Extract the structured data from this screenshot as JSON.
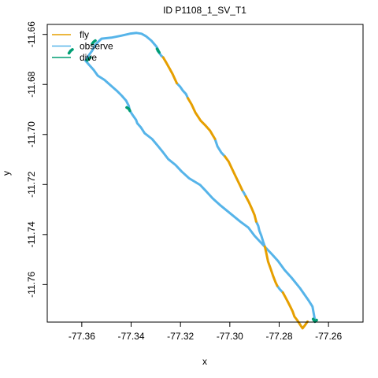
{
  "chart_data": {
    "type": "line",
    "title": "ID P1108_1_SV_T1",
    "xlabel": "x",
    "ylabel": "y",
    "xlim": [
      -77.374,
      -77.246
    ],
    "ylim": [
      -11.775,
      -11.656
    ],
    "x_ticks": [
      -77.36,
      -77.34,
      -77.32,
      -77.3,
      -77.28,
      -77.26
    ],
    "x_tick_labels": [
      "-77.36",
      "-77.34",
      "-77.32",
      "-77.30",
      "-77.28",
      "-77.26"
    ],
    "y_ticks": [
      -11.66,
      -11.68,
      -11.7,
      -11.72,
      -11.74,
      -11.76
    ],
    "y_tick_labels": [
      "-11.66",
      "-11.68",
      "-11.70",
      "-11.72",
      "-11.74",
      "-11.76"
    ],
    "grid": false,
    "legend_position": "top-left",
    "colors": {
      "fly": "#e69f00",
      "observe": "#56b4e9",
      "dive": "#009e73"
    },
    "series": [
      {
        "name": "observe",
        "segments": [
          {
            "x": [
              -77.2655,
              -77.2665,
              -77.2682,
              -77.2715,
              -77.275,
              -77.2778,
              -77.2805,
              -77.283,
              -77.2862,
              -77.29,
              -77.2925,
              -77.2958,
              -77.2995,
              -77.304,
              -77.307,
              -77.3095,
              -77.312,
              -77.3165,
              -77.3195,
              -77.322,
              -77.325,
              -77.327,
              -77.3292,
              -77.3315,
              -77.3345,
              -77.336,
              -77.3375,
              -77.338,
              -77.3392,
              -77.3405,
              -77.341,
              -77.342,
              -77.3438,
              -77.3458,
              -77.3485,
              -77.3508,
              -77.3535,
              -77.3552,
              -77.357,
              -77.3585,
              -77.3575,
              -77.3558,
              -77.3545,
              -77.3532,
              -77.352,
              -77.348,
              -77.344,
              -77.3405,
              -77.3378,
              -77.3358,
              -77.334,
              -77.3318,
              -77.3298,
              -77.329,
              -77.3292
            ],
            "y": [
              -11.7742,
              -11.7688,
              -11.7662,
              -11.7615,
              -11.7572,
              -11.7542,
              -11.7505,
              -11.7478,
              -11.7445,
              -11.7405,
              -11.7372,
              -11.7348,
              -11.7318,
              -11.7282,
              -11.7255,
              -11.7228,
              -11.7202,
              -11.7175,
              -11.7148,
              -11.7122,
              -11.7098,
              -11.7072,
              -11.7045,
              -11.7018,
              -11.6995,
              -11.6972,
              -11.6955,
              -11.6942,
              -11.6925,
              -11.6905,
              -11.6885,
              -11.6865,
              -11.6845,
              -11.6825,
              -11.6802,
              -11.6782,
              -11.6765,
              -11.6742,
              -11.6722,
              -11.6705,
              -11.6688,
              -11.6665,
              -11.6642,
              -11.6628,
              -11.6617,
              -11.6613,
              -11.6605,
              -11.6597,
              -11.6594,
              -11.6597,
              -11.6607,
              -11.6625,
              -11.6648,
              -11.6662,
              -11.6666
            ]
          },
          {
            "x": [
              -77.3292,
              -77.3285,
              -77.3278,
              -77.327
            ],
            "y": [
              -11.6666,
              -11.6675,
              -11.6685,
              -11.6692
            ]
          },
          {
            "x": [
              -77.3215,
              -77.3202,
              -77.319,
              -77.3178,
              -77.317
            ],
            "y": [
              -11.6795,
              -11.6808,
              -11.6825,
              -11.6838,
              -11.6855
            ]
          },
          {
            "x": [
              -77.306,
              -77.305,
              -77.3035,
              -77.302
            ],
            "y": [
              -11.7018,
              -11.7048,
              -11.7072,
              -11.7088
            ]
          },
          {
            "x": [
              -77.295,
              -77.2942,
              -77.2935
            ],
            "y": [
              -11.7222,
              -11.7235,
              -11.7248
            ]
          },
          {
            "x": [
              -77.2893,
              -77.2885,
              -77.288,
              -77.2872,
              -77.2865,
              -77.2858
            ],
            "y": [
              -11.7348,
              -11.7365,
              -11.7385,
              -11.7405,
              -11.7428,
              -11.7448
            ]
          },
          {
            "x": [
              -77.2808,
              -77.2798,
              -77.2785
            ],
            "y": [
              -11.7605,
              -11.7618,
              -11.7632
            ]
          }
        ]
      },
      {
        "name": "fly",
        "segments": [
          {
            "x": [
              -77.327,
              -77.3258,
              -77.3245,
              -77.3232,
              -77.3222,
              -77.3215
            ],
            "y": [
              -11.6692,
              -11.6712,
              -11.6735,
              -11.6758,
              -11.678,
              -11.6795
            ]
          },
          {
            "x": [
              -77.317,
              -77.3155,
              -77.314,
              -77.3118,
              -77.3098,
              -77.308,
              -77.3068,
              -77.306
            ],
            "y": [
              -11.6855,
              -11.688,
              -11.6912,
              -11.6945,
              -11.6965,
              -11.6985,
              -11.7005,
              -11.7018
            ]
          },
          {
            "x": [
              -77.302,
              -77.3005,
              -77.2992,
              -77.298,
              -77.2968,
              -77.2958,
              -77.295
            ],
            "y": [
              -11.7088,
              -11.7108,
              -11.7135,
              -11.716,
              -11.7185,
              -11.7205,
              -11.7222
            ]
          },
          {
            "x": [
              -77.2935,
              -77.2922,
              -77.291,
              -77.29,
              -77.2893
            ],
            "y": [
              -11.7248,
              -11.7272,
              -11.7298,
              -11.7322,
              -11.7348
            ]
          },
          {
            "x": [
              -77.2858,
              -77.2852,
              -77.2845,
              -77.2835,
              -77.2825,
              -77.2815,
              -77.2808
            ],
            "y": [
              -11.7448,
              -11.7475,
              -11.7508,
              -11.7535,
              -11.7565,
              -11.759,
              -11.7605
            ]
          },
          {
            "x": [
              -77.2785,
              -77.2775,
              -77.2765,
              -77.2755,
              -77.2745,
              -77.2738,
              -77.2725,
              -77.2712,
              -77.2705,
              -77.2695,
              -77.2685
            ],
            "y": [
              -11.7632,
              -11.765,
              -11.7668,
              -11.7688,
              -11.7708,
              -11.7728,
              -11.7745,
              -11.7765,
              -11.7775,
              -11.7762,
              -11.7748
            ]
          }
        ]
      },
      {
        "name": "dive",
        "segments": [
          {
            "x": [
              -77.2662,
              -77.2655,
              -77.2648
            ],
            "y": [
              -11.7738,
              -11.7748,
              -11.7742
            ]
          },
          {
            "x": [
              -77.3545,
              -77.3552,
              -77.3558
            ],
            "y": [
              -11.6625,
              -11.663,
              -11.6638
            ]
          },
          {
            "x": [
              -77.3565,
              -77.3572,
              -77.3578
            ],
            "y": [
              -11.6692,
              -11.6698,
              -11.6704
            ]
          },
          {
            "x": [
              -77.3295,
              -77.329,
              -77.3286
            ],
            "y": [
              -11.6658,
              -11.6666,
              -11.6672
            ]
          },
          {
            "x": [
              -77.3418,
              -77.341,
              -77.3405
            ],
            "y": [
              -11.6892,
              -11.6897,
              -11.6905
            ]
          },
          {
            "x": [
              -77.3652,
              -77.3645,
              -77.3638
            ],
            "y": [
              -11.6675,
              -11.6665,
              -11.666
            ]
          }
        ]
      }
    ]
  }
}
